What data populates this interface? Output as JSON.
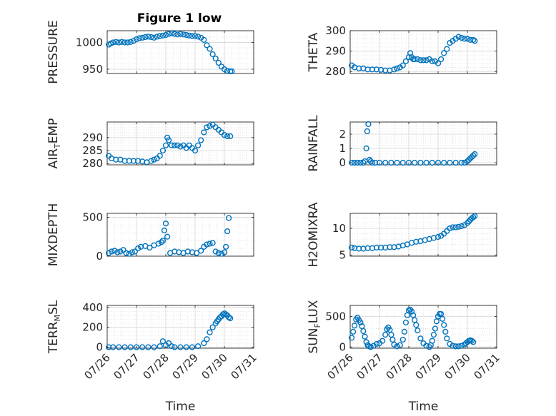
{
  "figure": {
    "title": "Figure 1 low",
    "marker_color": "#0072BD",
    "x_tick_labels": [
      "07/26",
      "07/27",
      "07/28",
      "07/29",
      "07/30",
      "07/31"
    ],
    "x_label": "Time"
  },
  "chart_data": [
    {
      "type": "scatter",
      "title": "Figure 1 low",
      "ylabel": "PRESSURE",
      "xlim": [
        26,
        31
      ],
      "ylim": [
        942,
        1022
      ],
      "yticks": [
        950,
        1000
      ],
      "grid": true,
      "x": [
        26.05,
        26.12,
        26.2,
        26.3,
        26.4,
        26.5,
        26.6,
        26.7,
        26.8,
        26.9,
        27.0,
        27.1,
        27.2,
        27.3,
        27.4,
        27.5,
        27.6,
        27.7,
        27.8,
        27.9,
        28.0,
        28.1,
        28.2,
        28.3,
        28.4,
        28.5,
        28.6,
        28.7,
        28.8,
        28.9,
        29.0,
        29.1,
        29.2,
        29.3,
        29.4,
        29.5,
        29.6,
        29.7,
        29.8,
        29.9,
        30.0,
        30.1,
        30.2,
        30.25
      ],
      "y": [
        996,
        998,
        1000,
        1001,
        1000,
        1001,
        1000,
        1000,
        1001,
        1003,
        1006,
        1008,
        1009,
        1010,
        1011,
        1010,
        1009,
        1011,
        1012,
        1013,
        1014,
        1016,
        1017,
        1016,
        1015,
        1016,
        1015,
        1014,
        1013,
        1012,
        1012,
        1011,
        1009,
        1005,
        995,
        988,
        978,
        970,
        962,
        955,
        950,
        947,
        946,
        946
      ]
    },
    {
      "type": "scatter",
      "ylabel": "THETA",
      "xlim": [
        26,
        31
      ],
      "ylim": [
        279,
        300
      ],
      "yticks": [
        280,
        290,
        300
      ],
      "grid": true,
      "x": [
        26.05,
        26.15,
        26.3,
        26.45,
        26.6,
        26.75,
        26.9,
        27.05,
        27.2,
        27.35,
        27.5,
        27.6,
        27.7,
        27.8,
        27.9,
        28.0,
        28.05,
        28.1,
        28.15,
        28.2,
        28.3,
        28.4,
        28.5,
        28.6,
        28.7,
        28.8,
        28.9,
        29.0,
        29.1,
        29.2,
        29.3,
        29.4,
        29.5,
        29.6,
        29.7,
        29.8,
        29.9,
        30.0,
        30.1,
        30.2,
        30.25
      ],
      "y": [
        283,
        282,
        281.5,
        281.5,
        281,
        281,
        281,
        280.8,
        280.5,
        280.5,
        281,
        281.5,
        282,
        283,
        285,
        287,
        289,
        287,
        286,
        286,
        286,
        285.5,
        285.5,
        285.5,
        286,
        285,
        285,
        284,
        286,
        289,
        291,
        294,
        295,
        296,
        297,
        296.5,
        296,
        296,
        295.5,
        295.5,
        295
      ]
    },
    {
      "type": "scatter",
      "ylabel": "AIR_TEMP",
      "xlim": [
        26,
        31
      ],
      "ylim": [
        279.5,
        296
      ],
      "yticks": [
        280,
        285,
        290
      ],
      "grid": true,
      "x": [
        26.05,
        26.15,
        26.3,
        26.45,
        26.6,
        26.75,
        26.9,
        27.05,
        27.2,
        27.35,
        27.5,
        27.6,
        27.7,
        27.8,
        27.9,
        28.0,
        28.05,
        28.1,
        28.2,
        28.3,
        28.4,
        28.5,
        28.6,
        28.7,
        28.8,
        28.9,
        29.0,
        29.1,
        29.2,
        29.3,
        29.4,
        29.5,
        29.6,
        29.7,
        29.8,
        29.9,
        30.0,
        30.1,
        30.2
      ],
      "y": [
        283,
        282,
        281.5,
        281.5,
        281,
        281,
        281,
        281,
        280.8,
        280.5,
        281,
        281.5,
        282,
        283,
        285,
        287,
        290,
        289,
        287,
        287,
        287,
        286.5,
        287,
        286,
        287,
        286,
        285,
        287,
        289,
        292,
        294,
        294.5,
        295,
        294,
        293,
        292,
        291,
        290.5,
        290.5
      ]
    },
    {
      "type": "scatter",
      "ylabel": "RAINFALL",
      "xlim": [
        26,
        31
      ],
      "ylim": [
        -0.15,
        2.85
      ],
      "yticks": [
        0,
        1,
        2
      ],
      "grid": true,
      "x": [
        26.05,
        26.15,
        26.25,
        26.35,
        26.45,
        26.5,
        26.55,
        26.58,
        26.62,
        26.66,
        26.7,
        26.75,
        26.85,
        27.0,
        27.2,
        27.4,
        27.6,
        27.8,
        28.0,
        28.2,
        28.4,
        28.6,
        28.8,
        29.0,
        29.2,
        29.4,
        29.6,
        29.8,
        29.9,
        30.0,
        30.05,
        30.1,
        30.15,
        30.2,
        30.25
      ],
      "y": [
        0,
        0,
        0,
        0,
        0,
        0.1,
        1.0,
        2.2,
        2.7,
        0.2,
        0.1,
        0,
        0,
        0,
        0,
        0,
        0,
        0,
        0,
        0,
        0,
        0,
        0,
        0,
        0,
        0,
        0,
        0,
        0,
        0.1,
        0.2,
        0.3,
        0.4,
        0.5,
        0.6
      ]
    },
    {
      "type": "scatter",
      "ylabel": "MIXDEPTH",
      "xlim": [
        26,
        31
      ],
      "ylim": [
        0,
        550
      ],
      "yticks": [
        0,
        500
      ],
      "grid": true,
      "x": [
        26.05,
        26.15,
        26.25,
        26.35,
        26.45,
        26.55,
        26.65,
        26.75,
        26.85,
        26.95,
        27.05,
        27.15,
        27.3,
        27.45,
        27.6,
        27.75,
        27.85,
        27.9,
        27.95,
        28.0,
        28.05,
        28.15,
        28.3,
        28.45,
        28.6,
        28.75,
        28.9,
        29.05,
        29.2,
        29.3,
        29.4,
        29.5,
        29.6,
        29.7,
        29.8,
        29.9,
        30.0,
        30.05,
        30.1,
        30.15
      ],
      "y": [
        40,
        60,
        70,
        50,
        60,
        80,
        40,
        30,
        50,
        60,
        100,
        120,
        130,
        110,
        140,
        160,
        180,
        200,
        330,
        420,
        250,
        40,
        60,
        50,
        40,
        60,
        50,
        40,
        70,
        120,
        150,
        160,
        170,
        60,
        40,
        30,
        50,
        120,
        320,
        490
      ]
    },
    {
      "type": "scatter",
      "ylabel": "H2OMIXRA",
      "xlim": [
        26,
        31
      ],
      "ylim": [
        4.8,
        12.8
      ],
      "yticks": [
        5,
        10
      ],
      "grid": true,
      "x": [
        26.05,
        26.15,
        26.3,
        26.45,
        26.6,
        26.75,
        26.9,
        27.05,
        27.2,
        27.35,
        27.5,
        27.65,
        27.8,
        27.95,
        28.1,
        28.25,
        28.4,
        28.55,
        28.7,
        28.85,
        29.0,
        29.1,
        29.2,
        29.3,
        29.4,
        29.5,
        29.6,
        29.7,
        29.8,
        29.9,
        30.0,
        30.05,
        30.1,
        30.15,
        30.2,
        30.25
      ],
      "y": [
        6.4,
        6.3,
        6.2,
        6.2,
        6.3,
        6.3,
        6.4,
        6.4,
        6.4,
        6.5,
        6.5,
        6.6,
        6.8,
        7.0,
        7.3,
        7.5,
        7.6,
        7.8,
        8.0,
        8.2,
        8.4,
        8.6,
        9.0,
        9.5,
        10.0,
        10.2,
        10.2,
        10.3,
        10.4,
        10.6,
        11.0,
        11.3,
        11.6,
        11.9,
        12.1,
        12.3
      ]
    },
    {
      "type": "scatter",
      "ylabel": "TERR_MSL",
      "xlim": [
        26,
        31
      ],
      "ylim": [
        -10,
        420
      ],
      "yticks": [
        0,
        200,
        400
      ],
      "grid": true,
      "x": [
        26.05,
        26.2,
        26.4,
        26.6,
        26.8,
        27.0,
        27.2,
        27.4,
        27.6,
        27.8,
        27.9,
        28.0,
        28.1,
        28.2,
        28.3,
        28.5,
        28.7,
        28.9,
        29.1,
        29.3,
        29.4,
        29.5,
        29.6,
        29.7,
        29.75,
        29.8,
        29.85,
        29.9,
        29.95,
        30.0,
        30.05,
        30.1,
        30.15,
        30.2
      ],
      "y": [
        0,
        0,
        0,
        0,
        0,
        0,
        0,
        0,
        0,
        10,
        60,
        20,
        40,
        10,
        0,
        0,
        0,
        0,
        10,
        40,
        80,
        150,
        200,
        240,
        260,
        280,
        300,
        310,
        330,
        340,
        330,
        320,
        300,
        290
      ]
    },
    {
      "type": "scatter",
      "ylabel": "SUN_FLUX",
      "xlim": [
        26,
        31
      ],
      "ylim": [
        -20,
        680
      ],
      "yticks": [
        0,
        500
      ],
      "grid": true,
      "x": [
        26.05,
        26.1,
        26.15,
        26.2,
        26.25,
        26.3,
        26.35,
        26.4,
        26.45,
        26.5,
        26.55,
        26.6,
        26.65,
        26.7,
        26.8,
        26.9,
        27.0,
        27.1,
        27.2,
        27.25,
        27.3,
        27.35,
        27.4,
        27.45,
        27.5,
        27.6,
        27.7,
        27.8,
        27.85,
        27.9,
        27.95,
        28.0,
        28.05,
        28.1,
        28.15,
        28.2,
        28.25,
        28.3,
        28.4,
        28.5,
        28.6,
        28.7,
        28.75,
        28.8,
        28.85,
        28.9,
        28.95,
        29.0,
        29.05,
        29.1,
        29.15,
        29.2,
        29.25,
        29.3,
        29.4,
        29.5,
        29.6,
        29.7,
        29.8,
        29.9,
        29.95,
        30.0,
        30.05,
        30.1,
        30.15,
        30.2
      ],
      "y": [
        150,
        250,
        350,
        450,
        480,
        440,
        400,
        340,
        260,
        170,
        80,
        30,
        10,
        0,
        20,
        50,
        60,
        100,
        200,
        290,
        320,
        280,
        200,
        120,
        40,
        10,
        30,
        120,
        250,
        400,
        520,
        600,
        610,
        580,
        520,
        440,
        360,
        270,
        140,
        60,
        20,
        0,
        30,
        100,
        200,
        300,
        420,
        500,
        540,
        540,
        460,
        360,
        250,
        140,
        50,
        20,
        10,
        10,
        20,
        40,
        60,
        80,
        100,
        110,
        100,
        80
      ]
    }
  ]
}
